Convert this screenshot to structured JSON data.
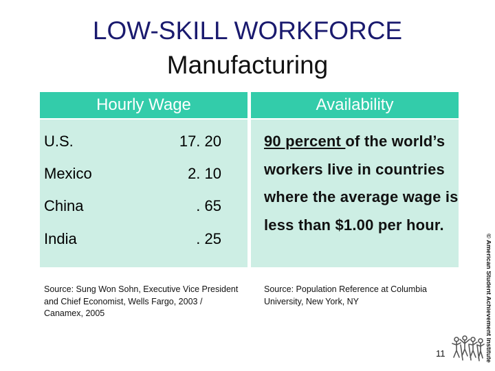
{
  "title": "LOW-SKILL WORKFORCE",
  "subtitle": "Manufacturing",
  "wage_table": {
    "header": "Hourly Wage",
    "rows": [
      {
        "country": "U.S.",
        "wage": "17. 20"
      },
      {
        "country": "Mexico",
        "wage": "2. 10"
      },
      {
        "country": "China",
        "wage": ". 65"
      },
      {
        "country": "India",
        "wage": ". 25"
      }
    ],
    "source": "Source: Sung Won Sohn, Executive Vice President and Chief Economist, Wells Fargo, 2003 / Canamex, 2005"
  },
  "availability": {
    "header": "Availability",
    "underlined": "90 percent ",
    "text": "of the world’s workers live in countries where the average wage is less than $1.00 per hour.",
    "source": "Source: Population Reference at Columbia University, New York, NY"
  },
  "copyright": "© American Student Achievement Institute",
  "page_number": "11",
  "colors": {
    "header_bg": "#33ccaa",
    "panel_bg": "#cdeee4",
    "title": "#1a1a6e"
  }
}
